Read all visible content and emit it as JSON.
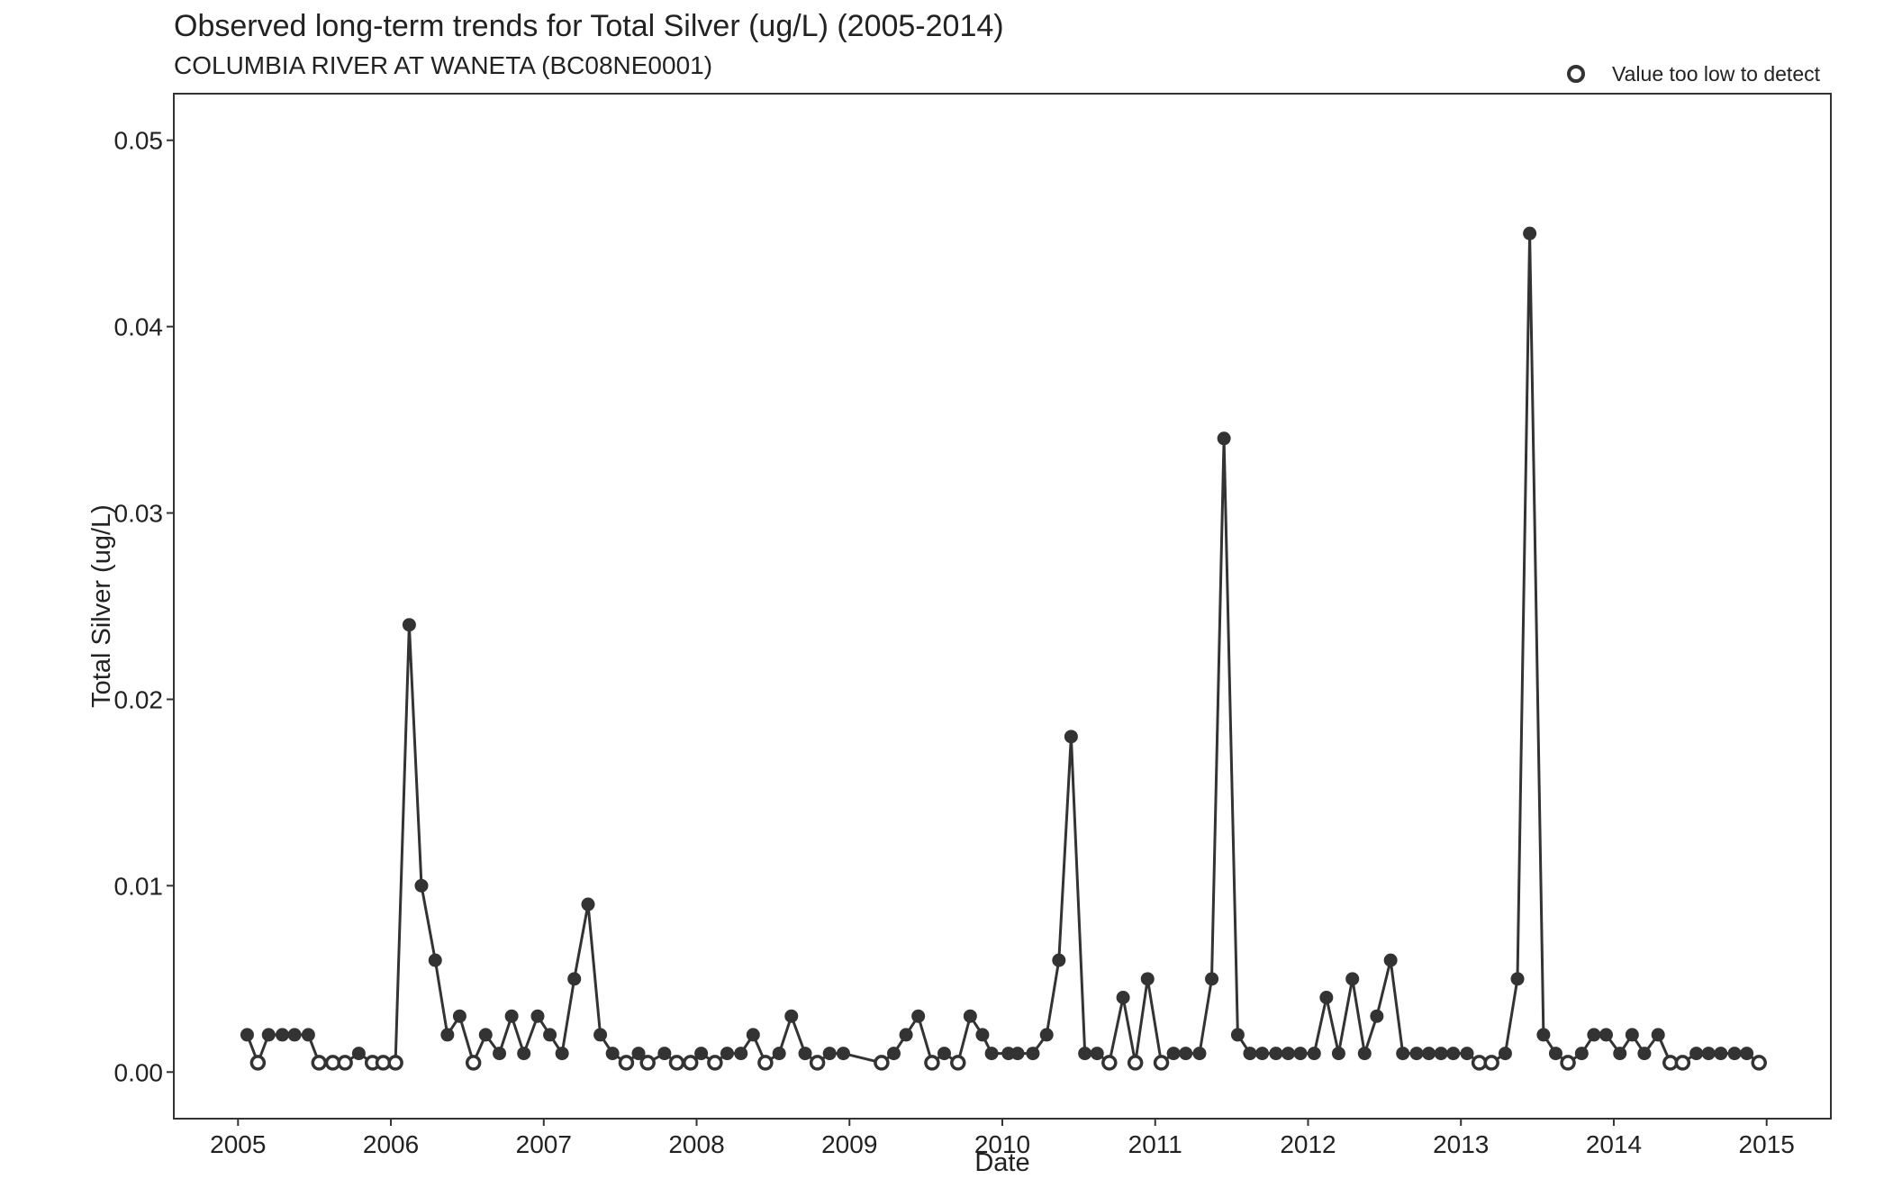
{
  "chart_data": {
    "type": "line",
    "title": "Observed long-term trends for Total Silver (ug/L) (2005-2014)",
    "subtitle": "COLUMBIA RIVER AT WANETA (BC08NE0001)",
    "xlabel": "Date",
    "ylabel": "Total Silver (ug/L)",
    "xlim": [
      2004.58,
      2015.42
    ],
    "ylim": [
      -0.0025,
      0.0525
    ],
    "x_ticks": [
      2005,
      2006,
      2007,
      2008,
      2009,
      2010,
      2011,
      2012,
      2013,
      2014,
      2015
    ],
    "x_tick_labels": [
      "2005",
      "2006",
      "2007",
      "2008",
      "2009",
      "2010",
      "2011",
      "2012",
      "2013",
      "2014",
      "2015"
    ],
    "y_ticks": [
      0,
      0.01,
      0.02,
      0.03,
      0.04,
      0.05
    ],
    "y_tick_labels": [
      "0.00",
      "0.01",
      "0.02",
      "0.03",
      "0.04",
      "0.05"
    ],
    "grid": false,
    "legend": {
      "placement": "top-right",
      "entries": [
        {
          "label": "Value too low to detect",
          "marker": "open-circle"
        }
      ]
    },
    "colors": {
      "series": "#333333",
      "open_fill": "#ffffff"
    },
    "series": [
      {
        "points": [
          {
            "x": 2005.06,
            "y": 0.002,
            "below_detection": false
          },
          {
            "x": 2005.13,
            "y": 0.0005,
            "below_detection": true
          },
          {
            "x": 2005.2,
            "y": 0.002,
            "below_detection": false
          },
          {
            "x": 2005.29,
            "y": 0.002,
            "below_detection": false
          },
          {
            "x": 2005.37,
            "y": 0.002,
            "below_detection": false
          },
          {
            "x": 2005.46,
            "y": 0.002,
            "below_detection": false
          },
          {
            "x": 2005.53,
            "y": 0.0005,
            "below_detection": true
          },
          {
            "x": 2005.62,
            "y": 0.0005,
            "below_detection": true
          },
          {
            "x": 2005.7,
            "y": 0.0005,
            "below_detection": true
          },
          {
            "x": 2005.79,
            "y": 0.001,
            "below_detection": false
          },
          {
            "x": 2005.88,
            "y": 0.0005,
            "below_detection": true
          },
          {
            "x": 2005.95,
            "y": 0.0005,
            "below_detection": true
          },
          {
            "x": 2006.03,
            "y": 0.0005,
            "below_detection": true
          },
          {
            "x": 2006.12,
            "y": 0.024,
            "below_detection": false
          },
          {
            "x": 2006.2,
            "y": 0.01,
            "below_detection": false
          },
          {
            "x": 2006.29,
            "y": 0.006,
            "below_detection": false
          },
          {
            "x": 2006.37,
            "y": 0.002,
            "below_detection": false
          },
          {
            "x": 2006.45,
            "y": 0.003,
            "below_detection": false
          },
          {
            "x": 2006.54,
            "y": 0.0005,
            "below_detection": true
          },
          {
            "x": 2006.62,
            "y": 0.002,
            "below_detection": false
          },
          {
            "x": 2006.71,
            "y": 0.001,
            "below_detection": false
          },
          {
            "x": 2006.79,
            "y": 0.003,
            "below_detection": false
          },
          {
            "x": 2006.87,
            "y": 0.001,
            "below_detection": false
          },
          {
            "x": 2006.96,
            "y": 0.003,
            "below_detection": false
          },
          {
            "x": 2007.04,
            "y": 0.002,
            "below_detection": false
          },
          {
            "x": 2007.12,
            "y": 0.001,
            "below_detection": false
          },
          {
            "x": 2007.2,
            "y": 0.005,
            "below_detection": false
          },
          {
            "x": 2007.29,
            "y": 0.009,
            "below_detection": false
          },
          {
            "x": 2007.37,
            "y": 0.002,
            "below_detection": false
          },
          {
            "x": 2007.45,
            "y": 0.001,
            "below_detection": false
          },
          {
            "x": 2007.54,
            "y": 0.0005,
            "below_detection": true
          },
          {
            "x": 2007.62,
            "y": 0.001,
            "below_detection": false
          },
          {
            "x": 2007.68,
            "y": 0.0005,
            "below_detection": true
          },
          {
            "x": 2007.79,
            "y": 0.001,
            "below_detection": false
          },
          {
            "x": 2007.87,
            "y": 0.0005,
            "below_detection": true
          },
          {
            "x": 2007.96,
            "y": 0.0005,
            "below_detection": true
          },
          {
            "x": 2008.03,
            "y": 0.001,
            "below_detection": false
          },
          {
            "x": 2008.12,
            "y": 0.0005,
            "below_detection": true
          },
          {
            "x": 2008.2,
            "y": 0.001,
            "below_detection": false
          },
          {
            "x": 2008.29,
            "y": 0.001,
            "below_detection": false
          },
          {
            "x": 2008.37,
            "y": 0.002,
            "below_detection": false
          },
          {
            "x": 2008.45,
            "y": 0.0005,
            "below_detection": true
          },
          {
            "x": 2008.54,
            "y": 0.001,
            "below_detection": false
          },
          {
            "x": 2008.62,
            "y": 0.003,
            "below_detection": false
          },
          {
            "x": 2008.71,
            "y": 0.001,
            "below_detection": false
          },
          {
            "x": 2008.79,
            "y": 0.0005,
            "below_detection": true
          },
          {
            "x": 2008.87,
            "y": 0.001,
            "below_detection": false
          },
          {
            "x": 2008.96,
            "y": 0.001,
            "below_detection": false
          },
          {
            "x": 2009.21,
            "y": 0.0005,
            "below_detection": true
          },
          {
            "x": 2009.29,
            "y": 0.001,
            "below_detection": false
          },
          {
            "x": 2009.37,
            "y": 0.002,
            "below_detection": false
          },
          {
            "x": 2009.45,
            "y": 0.003,
            "below_detection": false
          },
          {
            "x": 2009.54,
            "y": 0.0005,
            "below_detection": true
          },
          {
            "x": 2009.62,
            "y": 0.001,
            "below_detection": false
          },
          {
            "x": 2009.71,
            "y": 0.0005,
            "below_detection": true
          },
          {
            "x": 2009.79,
            "y": 0.003,
            "below_detection": false
          },
          {
            "x": 2009.87,
            "y": 0.002,
            "below_detection": false
          },
          {
            "x": 2009.93,
            "y": 0.001,
            "below_detection": false
          },
          {
            "x": 2010.04,
            "y": 0.001,
            "below_detection": false
          },
          {
            "x": 2010.1,
            "y": 0.001,
            "below_detection": false
          },
          {
            "x": 2010.2,
            "y": 0.001,
            "below_detection": false
          },
          {
            "x": 2010.29,
            "y": 0.002,
            "below_detection": false
          },
          {
            "x": 2010.37,
            "y": 0.006,
            "below_detection": false
          },
          {
            "x": 2010.45,
            "y": 0.018,
            "below_detection": false
          },
          {
            "x": 2010.54,
            "y": 0.001,
            "below_detection": false
          },
          {
            "x": 2010.62,
            "y": 0.001,
            "below_detection": false
          },
          {
            "x": 2010.7,
            "y": 0.0005,
            "below_detection": true
          },
          {
            "x": 2010.79,
            "y": 0.004,
            "below_detection": false
          },
          {
            "x": 2010.87,
            "y": 0.0005,
            "below_detection": true
          },
          {
            "x": 2010.95,
            "y": 0.005,
            "below_detection": false
          },
          {
            "x": 2011.04,
            "y": 0.0005,
            "below_detection": true
          },
          {
            "x": 2011.12,
            "y": 0.001,
            "below_detection": false
          },
          {
            "x": 2011.2,
            "y": 0.001,
            "below_detection": false
          },
          {
            "x": 2011.29,
            "y": 0.001,
            "below_detection": false
          },
          {
            "x": 2011.37,
            "y": 0.005,
            "below_detection": false
          },
          {
            "x": 2011.45,
            "y": 0.034,
            "below_detection": false
          },
          {
            "x": 2011.54,
            "y": 0.002,
            "below_detection": false
          },
          {
            "x": 2011.62,
            "y": 0.001,
            "below_detection": false
          },
          {
            "x": 2011.7,
            "y": 0.001,
            "below_detection": false
          },
          {
            "x": 2011.79,
            "y": 0.001,
            "below_detection": false
          },
          {
            "x": 2011.87,
            "y": 0.001,
            "below_detection": false
          },
          {
            "x": 2011.95,
            "y": 0.001,
            "below_detection": false
          },
          {
            "x": 2012.04,
            "y": 0.001,
            "below_detection": false
          },
          {
            "x": 2012.12,
            "y": 0.004,
            "below_detection": false
          },
          {
            "x": 2012.2,
            "y": 0.001,
            "below_detection": false
          },
          {
            "x": 2012.29,
            "y": 0.005,
            "below_detection": false
          },
          {
            "x": 2012.37,
            "y": 0.001,
            "below_detection": false
          },
          {
            "x": 2012.45,
            "y": 0.003,
            "below_detection": false
          },
          {
            "x": 2012.54,
            "y": 0.006,
            "below_detection": false
          },
          {
            "x": 2012.62,
            "y": 0.001,
            "below_detection": false
          },
          {
            "x": 2012.71,
            "y": 0.001,
            "below_detection": false
          },
          {
            "x": 2012.79,
            "y": 0.001,
            "below_detection": false
          },
          {
            "x": 2012.87,
            "y": 0.001,
            "below_detection": false
          },
          {
            "x": 2012.95,
            "y": 0.001,
            "below_detection": false
          },
          {
            "x": 2013.04,
            "y": 0.001,
            "below_detection": false
          },
          {
            "x": 2013.12,
            "y": 0.0005,
            "below_detection": true
          },
          {
            "x": 2013.2,
            "y": 0.0005,
            "below_detection": true
          },
          {
            "x": 2013.29,
            "y": 0.001,
            "below_detection": false
          },
          {
            "x": 2013.37,
            "y": 0.005,
            "below_detection": false
          },
          {
            "x": 2013.45,
            "y": 0.045,
            "below_detection": false
          },
          {
            "x": 2013.54,
            "y": 0.002,
            "below_detection": false
          },
          {
            "x": 2013.62,
            "y": 0.001,
            "below_detection": false
          },
          {
            "x": 2013.7,
            "y": 0.0005,
            "below_detection": true
          },
          {
            "x": 2013.79,
            "y": 0.001,
            "below_detection": false
          },
          {
            "x": 2013.87,
            "y": 0.002,
            "below_detection": false
          },
          {
            "x": 2013.95,
            "y": 0.002,
            "below_detection": false
          },
          {
            "x": 2014.04,
            "y": 0.001,
            "below_detection": false
          },
          {
            "x": 2014.12,
            "y": 0.002,
            "below_detection": false
          },
          {
            "x": 2014.2,
            "y": 0.001,
            "below_detection": false
          },
          {
            "x": 2014.29,
            "y": 0.002,
            "below_detection": false
          },
          {
            "x": 2014.37,
            "y": 0.0005,
            "below_detection": true
          },
          {
            "x": 2014.45,
            "y": 0.0005,
            "below_detection": true
          },
          {
            "x": 2014.54,
            "y": 0.001,
            "below_detection": false
          },
          {
            "x": 2014.62,
            "y": 0.001,
            "below_detection": false
          },
          {
            "x": 2014.7,
            "y": 0.001,
            "below_detection": false
          },
          {
            "x": 2014.79,
            "y": 0.001,
            "below_detection": false
          },
          {
            "x": 2014.87,
            "y": 0.001,
            "below_detection": false
          },
          {
            "x": 2014.95,
            "y": 0.0005,
            "below_detection": true
          }
        ]
      }
    ]
  }
}
